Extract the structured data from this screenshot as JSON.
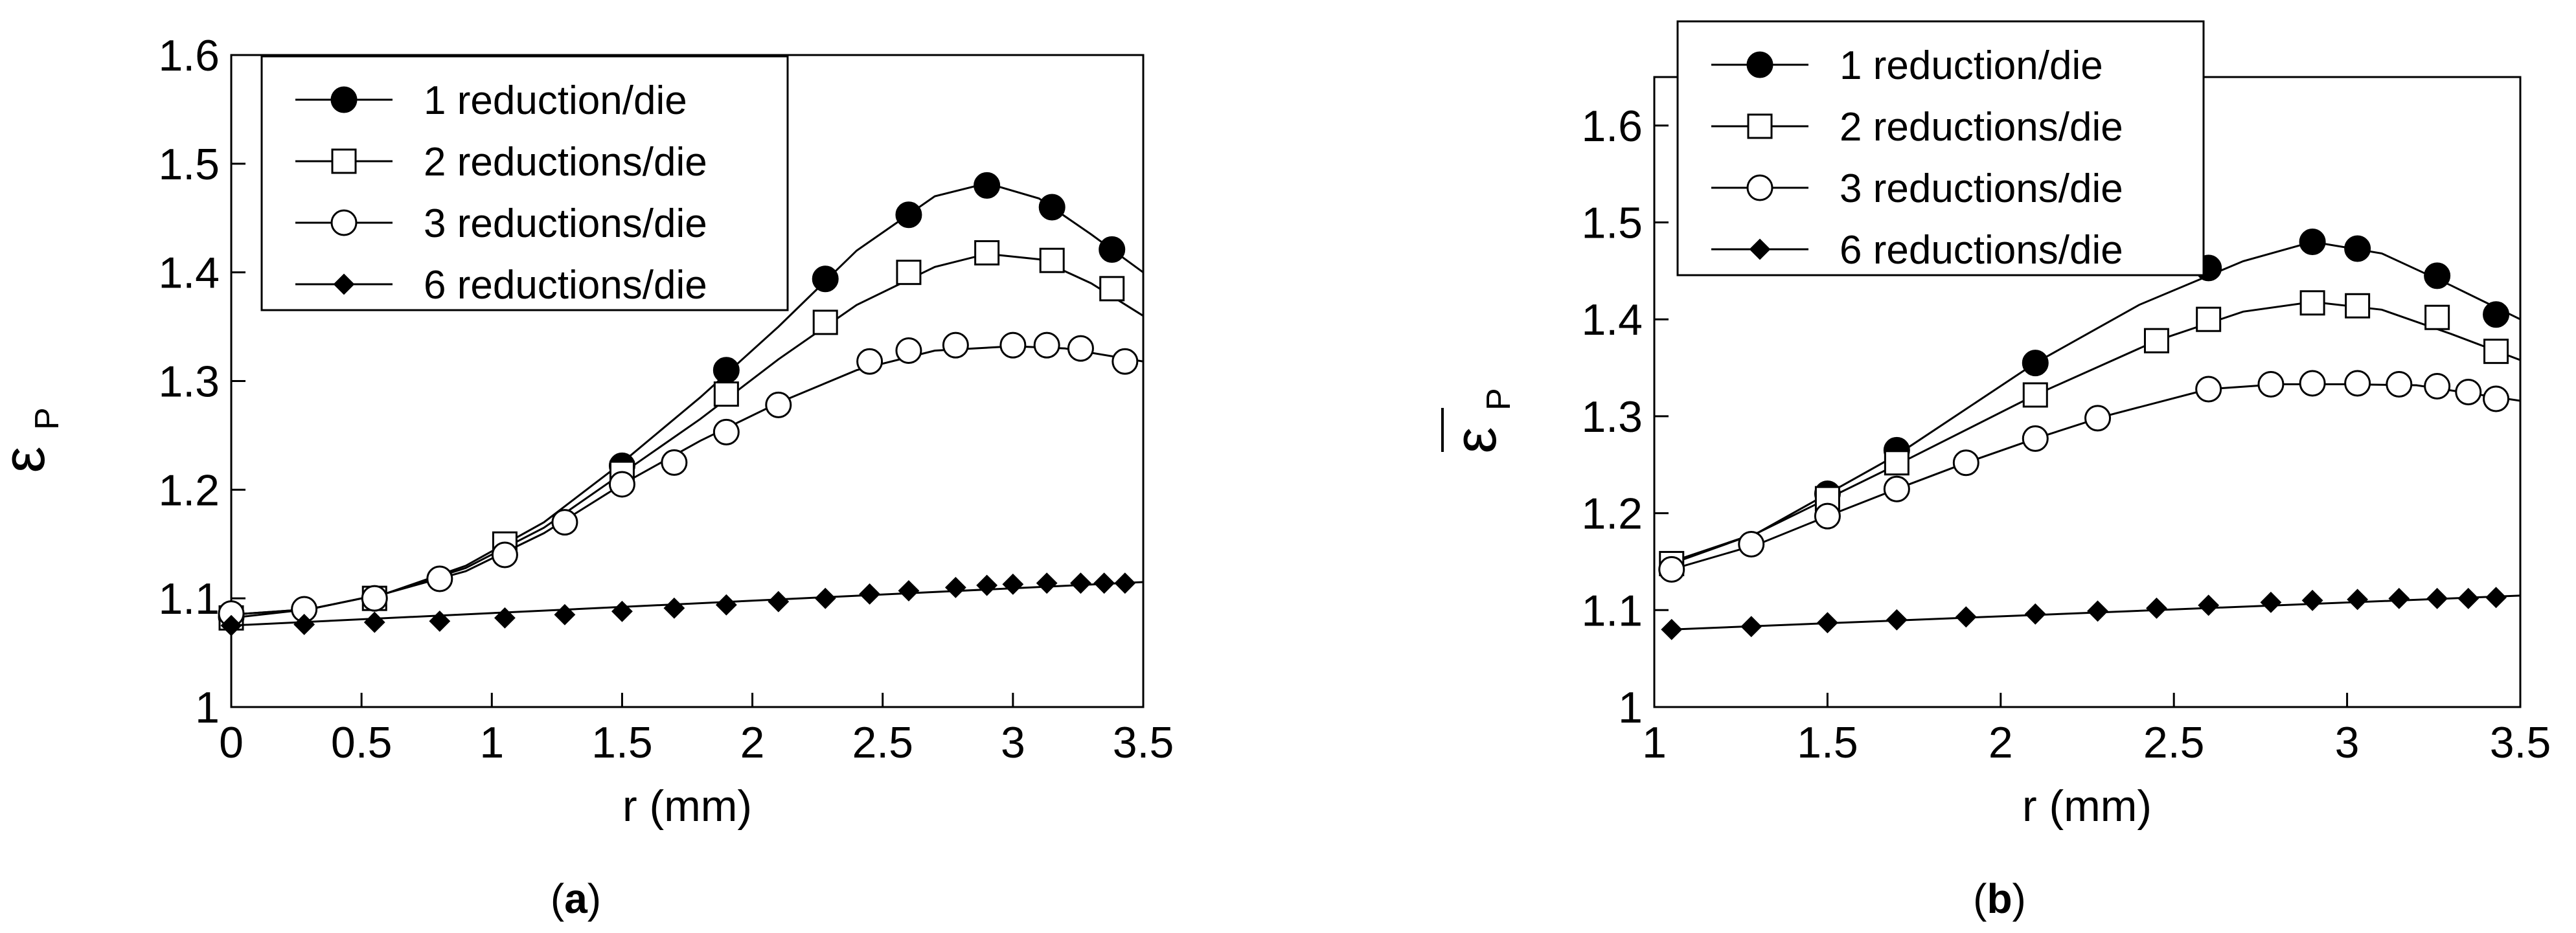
{
  "chart_data": [
    {
      "type": "line",
      "panel_label": "a",
      "xlabel": "r (mm)",
      "ylabel": "ε",
      "ylabel_subscript": "P",
      "xlim": [
        0,
        3.5
      ],
      "ylim": [
        1,
        1.6
      ],
      "xticks": [
        0,
        0.5,
        1,
        1.5,
        2,
        2.5,
        3,
        3.5
      ],
      "xtick_labels": [
        "0",
        "0.5",
        "1",
        "1.5",
        "2",
        "2.5",
        "3",
        "3.5"
      ],
      "yticks": [
        1,
        1.1,
        1.2,
        1.3,
        1.4,
        1.5,
        1.6
      ],
      "ytick_labels": [
        "1",
        "1.1",
        "1.2",
        "1.3",
        "1.4",
        "1.5",
        "1.6"
      ],
      "grid": false,
      "legend_position": "top-left",
      "series": [
        {
          "name": "1 reduction/die",
          "marker": "filled-circle",
          "line_x": [
            0,
            0.3,
            0.6,
            0.9,
            1.2,
            1.5,
            1.8,
            2.1,
            2.4,
            2.7,
            2.9,
            3.1,
            3.3,
            3.5
          ],
          "line_y": [
            1.085,
            1.09,
            1.105,
            1.13,
            1.17,
            1.225,
            1.285,
            1.35,
            1.42,
            1.47,
            1.482,
            1.468,
            1.435,
            1.4
          ],
          "marker_x": [
            0,
            1.5,
            1.9,
            2.28,
            2.6,
            2.9,
            3.15,
            3.38
          ],
          "marker_y": [
            1.083,
            1.222,
            1.31,
            1.394,
            1.453,
            1.48,
            1.46,
            1.421
          ]
        },
        {
          "name": "2 reductions/die",
          "marker": "open-square",
          "line_x": [
            0,
            0.3,
            0.6,
            0.9,
            1.2,
            1.5,
            1.8,
            2.1,
            2.4,
            2.7,
            2.9,
            3.1,
            3.3,
            3.5
          ],
          "line_y": [
            1.082,
            1.09,
            1.105,
            1.128,
            1.165,
            1.215,
            1.265,
            1.32,
            1.37,
            1.405,
            1.417,
            1.412,
            1.39,
            1.36
          ],
          "marker_x": [
            0,
            0.55,
            1.05,
            1.5,
            1.9,
            2.28,
            2.6,
            2.9,
            3.15,
            3.38
          ],
          "marker_y": [
            1.082,
            1.1,
            1.15,
            1.215,
            1.288,
            1.354,
            1.4,
            1.418,
            1.411,
            1.385
          ]
        },
        {
          "name": "3 reductions/die",
          "marker": "open-circle",
          "line_x": [
            0,
            0.3,
            0.6,
            0.9,
            1.2,
            1.5,
            1.8,
            2.1,
            2.4,
            2.7,
            3.0,
            3.2,
            3.5
          ],
          "line_y": [
            1.085,
            1.09,
            1.105,
            1.125,
            1.16,
            1.205,
            1.245,
            1.28,
            1.31,
            1.328,
            1.332,
            1.33,
            1.318
          ],
          "marker_x": [
            0,
            0.28,
            0.55,
            0.8,
            1.05,
            1.28,
            1.5,
            1.7,
            1.9,
            2.1,
            2.45,
            2.6,
            2.78,
            3.0,
            3.13,
            3.26,
            3.43
          ],
          "marker_y": [
            1.086,
            1.09,
            1.1,
            1.118,
            1.14,
            1.17,
            1.205,
            1.225,
            1.253,
            1.278,
            1.318,
            1.328,
            1.333,
            1.333,
            1.333,
            1.33,
            1.318
          ]
        },
        {
          "name": "6 reductions/die",
          "marker": "filled-diamond",
          "line_x": [
            0,
            3.5
          ],
          "line_y": [
            1.075,
            1.115
          ],
          "marker_x": [
            0,
            0.28,
            0.55,
            0.8,
            1.05,
            1.28,
            1.5,
            1.7,
            1.9,
            2.1,
            2.28,
            2.45,
            2.6,
            2.78,
            2.9,
            3.0,
            3.13,
            3.26,
            3.35,
            3.43
          ],
          "marker_y": [
            1.075,
            1.076,
            1.078,
            1.079,
            1.082,
            1.085,
            1.088,
            1.091,
            1.094,
            1.097,
            1.1,
            1.104,
            1.107,
            1.11,
            1.112,
            1.113,
            1.114,
            1.114,
            1.114,
            1.114
          ]
        }
      ]
    },
    {
      "type": "line",
      "panel_label": "b",
      "xlabel": "r (mm)",
      "ylabel": "ε",
      "ylabel_subscript": "P",
      "xlim": [
        1,
        3.5
      ],
      "ylim": [
        1,
        1.65
      ],
      "xticks": [
        1,
        1.5,
        2,
        2.5,
        3,
        3.5
      ],
      "xtick_labels": [
        "1",
        "1.5",
        "2",
        "2.5",
        "3",
        "3.5"
      ],
      "yticks": [
        1,
        1.1,
        1.2,
        1.3,
        1.4,
        1.5,
        1.6
      ],
      "ytick_labels": [
        "1",
        "1.1",
        "1.2",
        "1.3",
        "1.4",
        "1.5",
        "1.6"
      ],
      "grid": false,
      "legend_position": "top-left",
      "series": [
        {
          "name": "1 reduction/die",
          "marker": "filled-circle",
          "line_x": [
            1.05,
            1.3,
            1.5,
            1.7,
            2.1,
            2.4,
            2.7,
            2.9,
            3.1,
            3.3,
            3.5
          ],
          "line_y": [
            1.15,
            1.18,
            1.22,
            1.26,
            1.355,
            1.415,
            1.46,
            1.48,
            1.468,
            1.435,
            1.4
          ],
          "marker_x": [
            1.5,
            1.7,
            2.1,
            2.6,
            2.9,
            3.03,
            3.26,
            3.43
          ],
          "marker_y": [
            1.22,
            1.265,
            1.355,
            1.453,
            1.48,
            1.473,
            1.445,
            1.405
          ]
        },
        {
          "name": "2 reductions/die",
          "marker": "open-square",
          "line_x": [
            1.05,
            1.3,
            1.5,
            1.7,
            2.1,
            2.45,
            2.7,
            2.9,
            3.1,
            3.3,
            3.5
          ],
          "line_y": [
            1.148,
            1.18,
            1.215,
            1.25,
            1.322,
            1.378,
            1.408,
            1.418,
            1.41,
            1.385,
            1.358
          ],
          "marker_x": [
            1.05,
            1.5,
            1.7,
            2.1,
            2.45,
            2.6,
            2.9,
            3.03,
            3.26,
            3.43
          ],
          "marker_y": [
            1.148,
            1.215,
            1.252,
            1.322,
            1.378,
            1.4,
            1.417,
            1.414,
            1.402,
            1.367
          ]
        },
        {
          "name": "3 reductions/die",
          "marker": "open-circle",
          "line_x": [
            1.05,
            1.3,
            1.5,
            1.7,
            1.9,
            2.1,
            2.3,
            2.6,
            2.8,
            3.0,
            3.2,
            3.5
          ],
          "line_y": [
            1.142,
            1.168,
            1.197,
            1.225,
            1.252,
            1.277,
            1.3,
            1.328,
            1.333,
            1.333,
            1.332,
            1.316
          ],
          "marker_x": [
            1.05,
            1.28,
            1.5,
            1.7,
            1.9,
            2.1,
            2.28,
            2.6,
            2.78,
            2.9,
            3.03,
            3.15,
            3.26,
            3.35,
            3.43
          ],
          "marker_y": [
            1.142,
            1.168,
            1.197,
            1.225,
            1.252,
            1.277,
            1.298,
            1.328,
            1.333,
            1.334,
            1.334,
            1.333,
            1.331,
            1.325,
            1.318
          ]
        },
        {
          "name": "6 reductions/die",
          "marker": "filled-diamond",
          "line_x": [
            1.05,
            3.5
          ],
          "line_y": [
            1.08,
            1.115
          ],
          "marker_x": [
            1.05,
            1.28,
            1.5,
            1.7,
            1.9,
            2.1,
            2.28,
            2.45,
            2.6,
            2.78,
            2.9,
            3.03,
            3.15,
            3.26,
            3.35,
            3.43
          ],
          "marker_y": [
            1.08,
            1.083,
            1.087,
            1.09,
            1.093,
            1.096,
            1.099,
            1.102,
            1.105,
            1.108,
            1.11,
            1.111,
            1.112,
            1.112,
            1.112,
            1.113
          ]
        }
      ]
    }
  ]
}
